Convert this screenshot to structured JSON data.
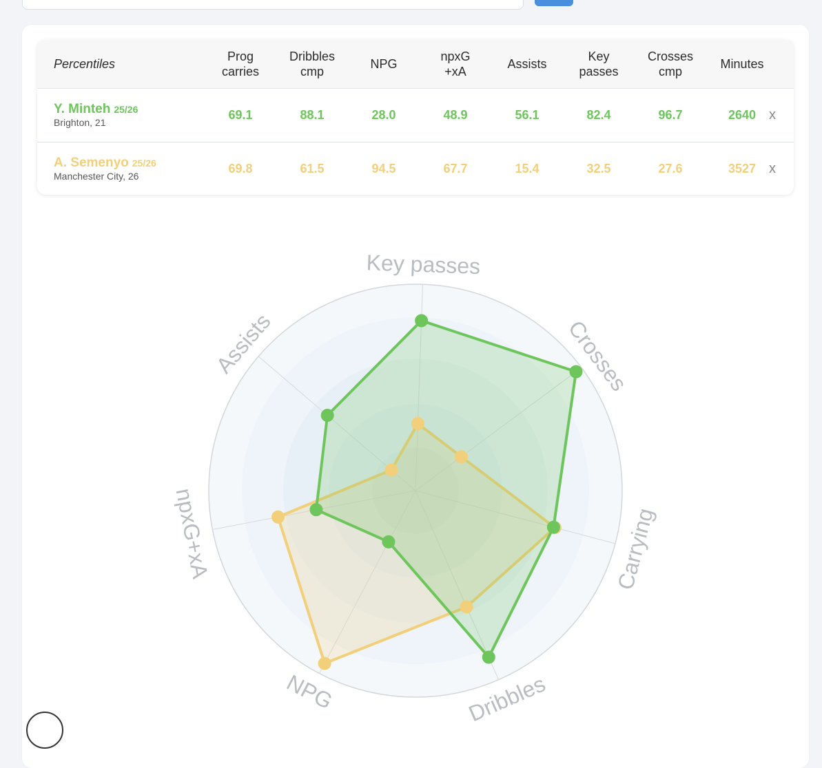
{
  "table": {
    "header_label": "Percentiles",
    "columns": [
      {
        "line1": "Prog",
        "line2": "carries"
      },
      {
        "line1": "Dribbles",
        "line2": "cmp"
      },
      {
        "line1": "NPG",
        "line2": ""
      },
      {
        "line1": "npxG",
        "line2": "+xA"
      },
      {
        "line1": "Assists",
        "line2": ""
      },
      {
        "line1": "Key",
        "line2": "passes"
      },
      {
        "line1": "Crosses",
        "line2": "cmp"
      },
      {
        "line1": "Minutes",
        "line2": ""
      }
    ],
    "rows": [
      {
        "name": "Y. Minteh",
        "season": "25/26",
        "info": "Brighton, 21",
        "values": [
          "69.1",
          "88.1",
          "28.0",
          "48.9",
          "56.1",
          "82.4",
          "96.7",
          "2640"
        ],
        "remove_label": "x",
        "color": "#6dc55c"
      },
      {
        "name": "A. Semenyo",
        "season": "25/26",
        "info": "Manchester City, 26",
        "values": [
          "69.8",
          "61.5",
          "94.5",
          "67.7",
          "15.4",
          "32.5",
          "27.6",
          "3527"
        ],
        "remove_label": "x",
        "color": "#f2cf7a"
      }
    ]
  },
  "chart_data": {
    "type": "radar",
    "axes": [
      "Key passes",
      "Crosses",
      "Carrying",
      "Dribbles",
      "NPG",
      "npxG+xA",
      "Assists"
    ],
    "range": [
      0,
      100
    ],
    "grid": "concentric-bands",
    "series": [
      {
        "name": "Y. Minteh",
        "values": [
          82.4,
          96.7,
          69.1,
          88.1,
          28.0,
          48.9,
          56.1
        ],
        "color": "#6dc55c"
      },
      {
        "name": "A. Semenyo",
        "values": [
          32.5,
          27.6,
          69.8,
          61.5,
          94.5,
          67.7,
          15.4
        ],
        "color": "#f2cf7a"
      }
    ]
  },
  "logo": {
    "icon": "brand-logo"
  }
}
